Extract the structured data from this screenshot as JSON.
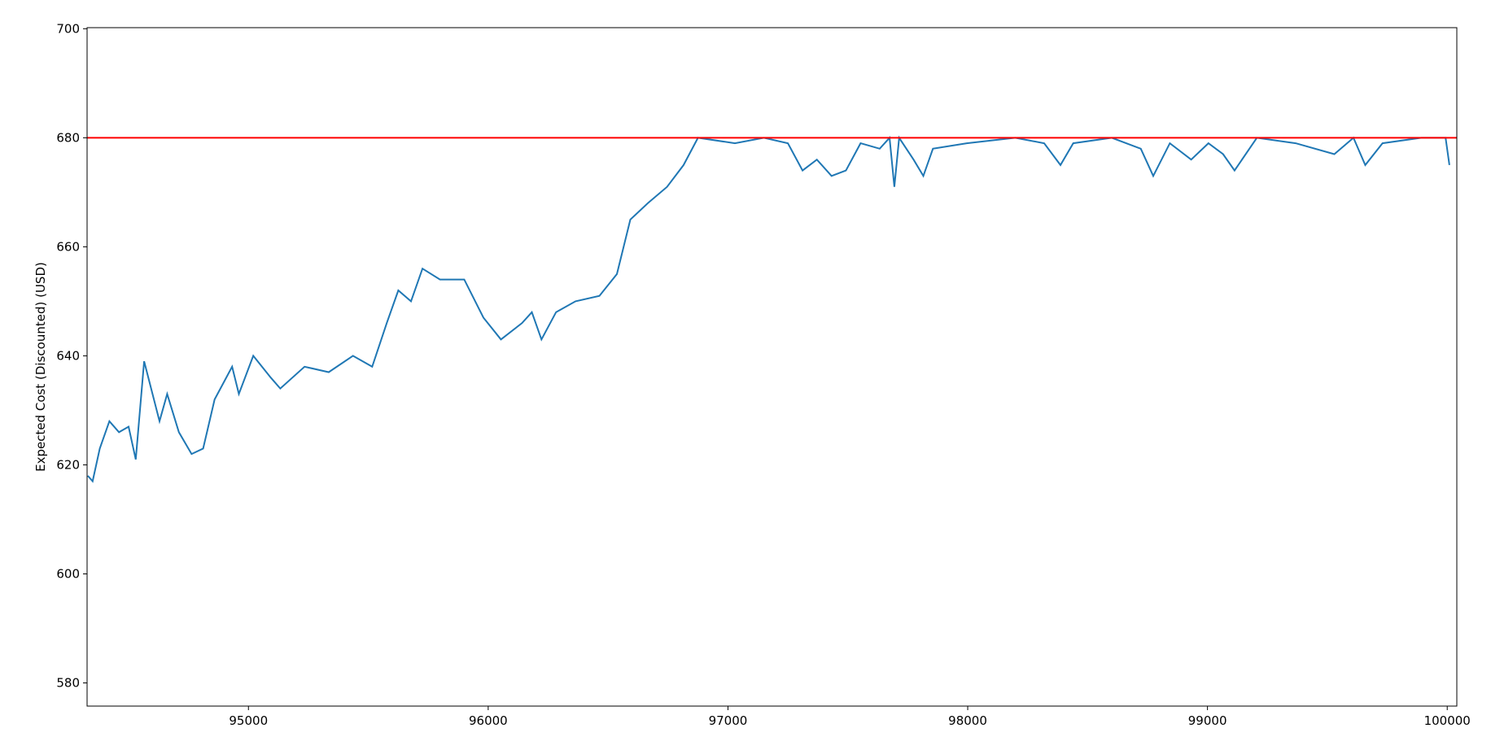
{
  "chart_data": {
    "type": "line",
    "y_label": "Expected Cost (Discounted) (USD)",
    "x": [
      94330,
      94350,
      94380,
      94420,
      94460,
      94500,
      94530,
      94565,
      94629,
      94661,
      94710,
      94763,
      94811,
      94859,
      94932,
      94960,
      95020,
      95093,
      95133,
      95234,
      95335,
      95436,
      95516,
      95577,
      95625,
      95678,
      95726,
      95799,
      95900,
      95980,
      96053,
      96141,
      96182,
      96222,
      96283,
      96364,
      96464,
      96537,
      96593,
      96666,
      96746,
      96815,
      96875,
      97029,
      97150,
      97250,
      97311,
      97371,
      97432,
      97492,
      97553,
      97633,
      97674,
      97694,
      97714,
      97774,
      97815,
      97855,
      97996,
      98198,
      98319,
      98387,
      98440,
      98601,
      98722,
      98774,
      98843,
      98932,
      99004,
      99065,
      99113,
      99206,
      99368,
      99529,
      99609,
      99658,
      99730,
      99892,
      99993,
      100009
    ],
    "series": [
      {
        "color": "#1f77b4",
        "values": [
          618,
          617,
          623,
          628,
          626,
          627,
          621,
          639,
          628,
          633,
          626,
          622,
          623,
          632,
          638,
          633,
          640,
          636,
          634,
          638,
          637,
          640,
          638,
          646,
          652,
          650,
          656,
          654,
          654,
          647,
          643,
          646,
          648,
          643,
          648,
          650,
          651,
          655,
          665,
          668,
          671,
          675,
          680,
          679,
          680,
          679,
          674,
          676,
          673,
          674,
          679,
          678,
          680,
          671,
          680,
          676,
          673,
          678,
          679,
          680,
          679,
          675,
          679,
          680,
          678,
          673,
          679,
          676,
          679,
          677,
          674,
          680,
          679,
          677,
          680,
          675,
          679,
          680,
          680,
          675
        ]
      }
    ],
    "hline": {
      "value": 680,
      "color": "#ff0000"
    },
    "xlim": [
      94327,
      100040
    ],
    "ylim": [
      575.75,
      700.2
    ],
    "xticks": [
      95000,
      96000,
      97000,
      98000,
      99000,
      100000
    ],
    "yticks": [
      580,
      600,
      620,
      640,
      660,
      680,
      700
    ]
  }
}
